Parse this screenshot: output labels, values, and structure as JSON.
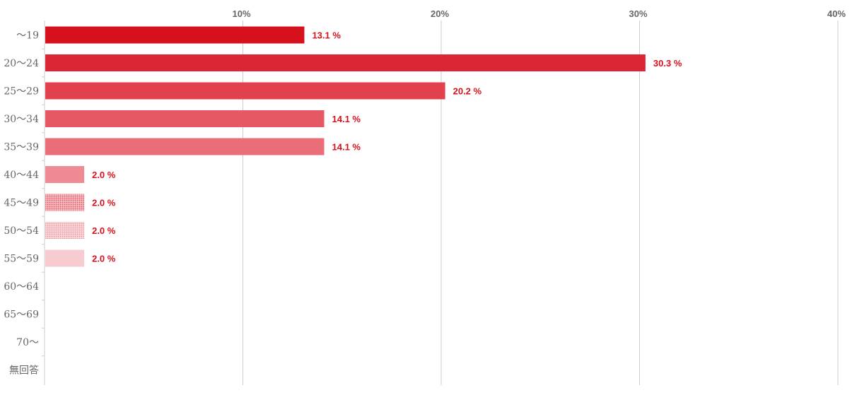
{
  "chart_data": {
    "type": "bar",
    "orientation": "horizontal",
    "categories": [
      "～19",
      "20～24",
      "25～29",
      "30～34",
      "35～39",
      "40～44",
      "45～49",
      "50～54",
      "55～59",
      "60～64",
      "65～69",
      "70～",
      "無回答"
    ],
    "values": [
      13.1,
      30.3,
      20.2,
      14.1,
      14.1,
      2.0,
      2.0,
      2.0,
      2.0,
      null,
      null,
      null,
      null
    ],
    "value_labels": [
      "13.1 %",
      "30.3 %",
      "20.2 %",
      "14.1 %",
      "14.1 %",
      "2.0 %",
      "2.0 %",
      "2.0 %",
      "2.0 %",
      "",
      "",
      "",
      ""
    ],
    "x_ticks": [
      "10%",
      "20%",
      "30%",
      "40%"
    ],
    "xlim": [
      0,
      40
    ],
    "grid": true,
    "title": "",
    "xlabel": "",
    "ylabel": "",
    "bar_colors": [
      "#d7111c",
      "#dc2633",
      "#e1404c",
      "#e55864",
      "#e96e78",
      "#ee8a92",
      "#ee8a92",
      "#f0a3a9",
      "#f6ccd0"
    ],
    "bar_patterns": [
      "solid",
      "solid",
      "solid",
      "solid",
      "solid",
      "solid",
      "dots",
      "dots-light",
      "solid"
    ],
    "label_color": "#d7111c",
    "grid_color": "#cccccc"
  }
}
